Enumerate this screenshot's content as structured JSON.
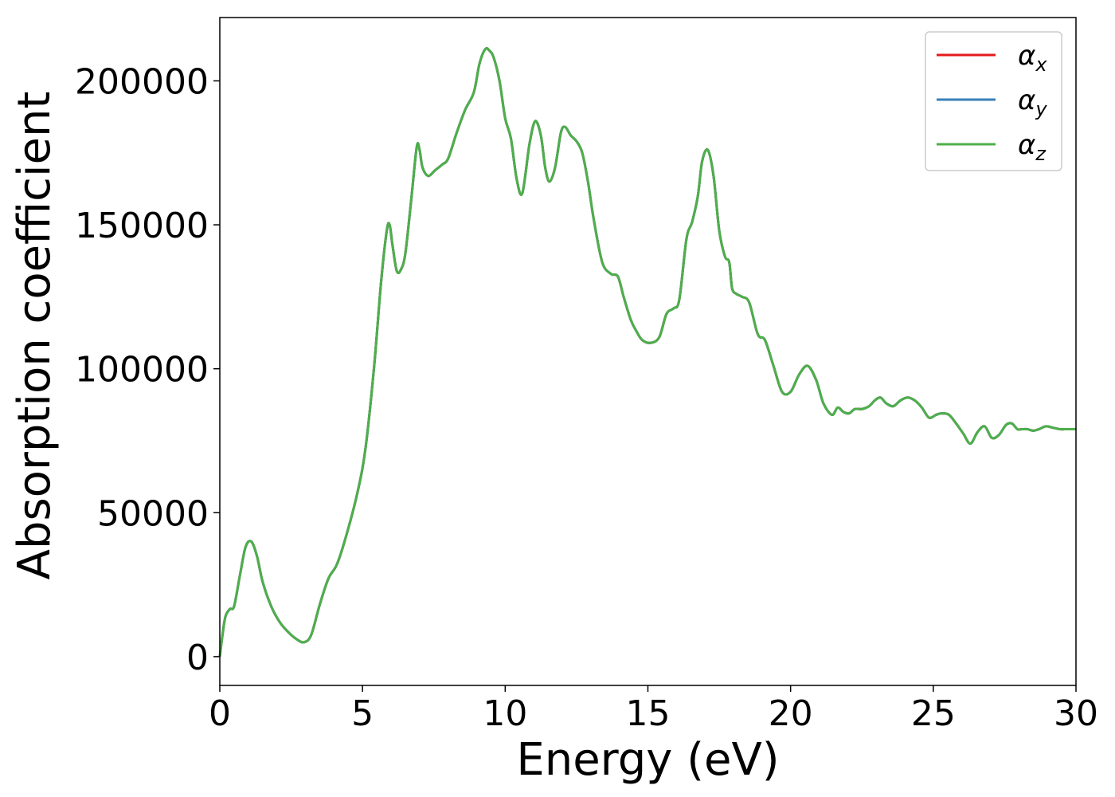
{
  "chart_data": {
    "type": "line",
    "xlabel": "Energy (eV)",
    "ylabel": "Absorption coefficient",
    "xlim": [
      0,
      30
    ],
    "ylim": [
      -10000,
      222000
    ],
    "xticks": [
      0,
      5,
      10,
      15,
      20,
      25,
      30
    ],
    "xtick_labels": [
      "0",
      "5",
      "10",
      "15",
      "20",
      "25",
      "30"
    ],
    "yticks": [
      0,
      50000,
      100000,
      150000,
      200000
    ],
    "ytick_labels": [
      "0",
      "50000",
      "100000",
      "150000",
      "200000"
    ],
    "grid": false,
    "legend_position": "top-right",
    "x": [
      0,
      0.1,
      0.2,
      0.35,
      0.5,
      0.7,
      0.9,
      1.1,
      1.3,
      1.5,
      1.8,
      2.1,
      2.4,
      2.7,
      2.95,
      3.2,
      3.5,
      3.8,
      4.1,
      4.4,
      4.8,
      5.1,
      5.4,
      5.65,
      5.85,
      5.95,
      6.05,
      6.2,
      6.35,
      6.5,
      6.7,
      6.9,
      7.0,
      7.1,
      7.3,
      7.55,
      7.8,
      8.0,
      8.3,
      8.6,
      8.9,
      9.1,
      9.3,
      9.45,
      9.6,
      9.8,
      10.0,
      10.2,
      10.4,
      10.6,
      10.85,
      11.05,
      11.25,
      11.4,
      11.55,
      11.75,
      11.95,
      12.1,
      12.3,
      12.5,
      12.7,
      12.9,
      13.1,
      13.4,
      13.7,
      13.95,
      14.15,
      14.4,
      14.6,
      14.8,
      15.1,
      15.4,
      15.65,
      15.9,
      16.1,
      16.35,
      16.55,
      16.75,
      16.9,
      17.1,
      17.3,
      17.5,
      17.7,
      17.85,
      17.95,
      18.1,
      18.3,
      18.55,
      18.85,
      19.1,
      19.4,
      19.7,
      20.0,
      20.3,
      20.6,
      20.9,
      21.15,
      21.45,
      21.65,
      21.85,
      22.05,
      22.25,
      22.5,
      22.75,
      22.95,
      23.15,
      23.35,
      23.6,
      23.85,
      24.1,
      24.35,
      24.6,
      24.85,
      25.1,
      25.3,
      25.55,
      25.8,
      26.05,
      26.3,
      26.55,
      26.8,
      27.05,
      27.3,
      27.55,
      27.75,
      27.95,
      28.1,
      28.3,
      28.5,
      28.7,
      28.95,
      29.2,
      29.45,
      29.6,
      29.8,
      30.0
    ],
    "series": [
      {
        "name": "α_x",
        "color": "#e41a1c",
        "values": [
          0,
          8000,
          14000,
          16500,
          17500,
          28000,
          38000,
          40000,
          35000,
          26000,
          17500,
          12000,
          8500,
          6000,
          5000,
          7500,
          18000,
          27000,
          32000,
          41000,
          56000,
          72000,
          100000,
          130000,
          148000,
          150000,
          143000,
          134000,
          134500,
          140000,
          158000,
          177000,
          176000,
          170000,
          167000,
          169000,
          171000,
          173000,
          182000,
          190000,
          196000,
          206000,
          211000,
          210500,
          208000,
          200000,
          187000,
          180000,
          166000,
          161000,
          178000,
          186000,
          181000,
          170000,
          165000,
          170000,
          182000,
          184000,
          181000,
          179000,
          175000,
          165000,
          152000,
          137000,
          133000,
          132000,
          125000,
          117000,
          113000,
          110000,
          109000,
          111000,
          119000,
          121000,
          124000,
          145000,
          151000,
          160000,
          172000,
          176000,
          167000,
          148000,
          139000,
          137000,
          128000,
          126000,
          125000,
          123000,
          112000,
          110000,
          101000,
          92000,
          92000,
          98000,
          101000,
          96000,
          88000,
          84000,
          86500,
          85000,
          84500,
          86000,
          86000,
          87000,
          89000,
          90000,
          88000,
          87000,
          89000,
          90000,
          89000,
          86500,
          83000,
          84000,
          84500,
          84000,
          81000,
          77500,
          74000,
          78000,
          80000,
          76000,
          77000,
          80500,
          81000,
          79000,
          79000,
          79000,
          78500,
          79000,
          80000,
          79500,
          79000,
          79000,
          79000,
          79000
        ]
      },
      {
        "name": "α_y",
        "color": "#377eb8",
        "values": [
          0,
          8000,
          14000,
          16500,
          17500,
          28000,
          38000,
          40000,
          35000,
          26000,
          17500,
          12000,
          8500,
          6000,
          5000,
          7500,
          18000,
          27000,
          32000,
          41000,
          56000,
          72000,
          100000,
          130000,
          148000,
          150000,
          143000,
          134000,
          134500,
          140000,
          158000,
          177000,
          176000,
          170000,
          167000,
          169000,
          171000,
          173000,
          182000,
          190000,
          196000,
          206000,
          211000,
          210500,
          208000,
          200000,
          187000,
          180000,
          166000,
          161000,
          178000,
          186000,
          181000,
          170000,
          165000,
          170000,
          182000,
          184000,
          181000,
          179000,
          175000,
          165000,
          152000,
          137000,
          133000,
          132000,
          125000,
          117000,
          113000,
          110000,
          109000,
          111000,
          119000,
          121000,
          124000,
          145000,
          151000,
          160000,
          172000,
          176000,
          167000,
          148000,
          139000,
          137000,
          128000,
          126000,
          125000,
          123000,
          112000,
          110000,
          101000,
          92000,
          92000,
          98000,
          101000,
          96000,
          88000,
          84000,
          86500,
          85000,
          84500,
          86000,
          86000,
          87000,
          89000,
          90000,
          88000,
          87000,
          89000,
          90000,
          89000,
          86500,
          83000,
          84000,
          84500,
          84000,
          81000,
          77500,
          74000,
          78000,
          80000,
          76000,
          77000,
          80500,
          81000,
          79000,
          79000,
          79000,
          78500,
          79000,
          80000,
          79500,
          79000,
          79000,
          79000,
          79000
        ]
      },
      {
        "name": "α_z",
        "color": "#4daf4a",
        "values": [
          0,
          8000,
          14000,
          16500,
          17500,
          28000,
          38000,
          40000,
          35000,
          26000,
          17500,
          12000,
          8500,
          6000,
          5000,
          7500,
          18000,
          27000,
          32000,
          41000,
          56000,
          72000,
          100000,
          130000,
          148000,
          150000,
          143000,
          134000,
          134500,
          140000,
          158000,
          177000,
          176000,
          170000,
          167000,
          169000,
          171000,
          173000,
          182000,
          190000,
          196000,
          206000,
          211000,
          210500,
          208000,
          200000,
          187000,
          180000,
          166000,
          161000,
          178000,
          186000,
          181000,
          170000,
          165000,
          170000,
          182000,
          184000,
          181000,
          179000,
          175000,
          165000,
          152000,
          137000,
          133000,
          132000,
          125000,
          117000,
          113000,
          110000,
          109000,
          111000,
          119000,
          121000,
          124000,
          145000,
          151000,
          160000,
          172000,
          176000,
          167000,
          148000,
          139000,
          137000,
          128000,
          126000,
          125000,
          123000,
          112000,
          110000,
          101000,
          92000,
          92000,
          98000,
          101000,
          96000,
          88000,
          84000,
          86500,
          85000,
          84500,
          86000,
          86000,
          87000,
          89000,
          90000,
          88000,
          87000,
          89000,
          90000,
          89000,
          86500,
          83000,
          84000,
          84500,
          84000,
          81000,
          77500,
          74000,
          78000,
          80000,
          76000,
          77000,
          80500,
          81000,
          79000,
          79000,
          79000,
          78500,
          79000,
          80000,
          79500,
          79000,
          79000,
          79000,
          79000
        ]
      }
    ],
    "legend": [
      {
        "base": "α",
        "sub": "x",
        "color": "#e41a1c"
      },
      {
        "base": "α",
        "sub": "y",
        "color": "#377eb8"
      },
      {
        "base": "α",
        "sub": "z",
        "color": "#4daf4a"
      }
    ]
  }
}
